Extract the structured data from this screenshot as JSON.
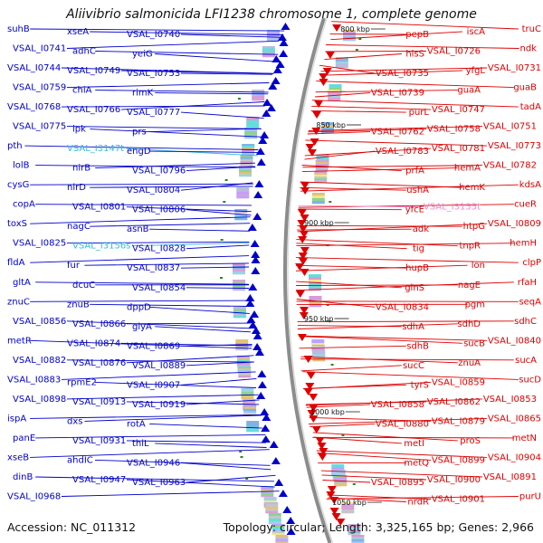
{
  "title": "Aliivibrio salmonicida LFI1238 chromosome 1, complete genome",
  "footer": {
    "accession": "Accession: NC_011312",
    "summary": "Topology: circular; Length: 3,325,165 bp; Genes: 2,966"
  },
  "colors": {
    "minus_strand": "#0000cc",
    "plus_strand": "#dd0000",
    "minus_rna": "#33bbdd",
    "plus_rna": "#ee88cc",
    "backbone": "#999999"
  },
  "ticks": [
    "800 kbp",
    "850 kbp",
    "900 kbp",
    "950 kbp",
    "1000 kbp",
    "1050 kbp"
  ],
  "left_labels": [
    {
      "text": "suhB",
      "rna": false
    },
    {
      "text": "xseA",
      "rna": false
    },
    {
      "text": "VSAL_I0740",
      "rna": false
    },
    {
      "text": "VSAL_I0741",
      "rna": false
    },
    {
      "text": "adhC",
      "rna": false
    },
    {
      "text": "yeiG",
      "rna": false
    },
    {
      "text": "VSAL_I0744",
      "rna": false
    },
    {
      "text": "VSAL_I0749",
      "rna": false
    },
    {
      "text": "VSAL_I0753",
      "rna": false
    },
    {
      "text": "VSAL_I0759",
      "rna": false
    },
    {
      "text": "chiA",
      "rna": false
    },
    {
      "text": "rimK",
      "rna": false
    },
    {
      "text": "VSAL_I0768",
      "rna": false
    },
    {
      "text": "VSAL_I0766",
      "rna": false
    },
    {
      "text": "VSAL_I0777",
      "rna": false
    },
    {
      "text": "VSAL_I0775",
      "rna": false
    },
    {
      "text": "ipk",
      "rna": false
    },
    {
      "text": "prs",
      "rna": false
    },
    {
      "text": "pth",
      "rna": false
    },
    {
      "text": "VSAL_I3147t",
      "rna": true
    },
    {
      "text": "engD",
      "rna": false
    },
    {
      "text": "lolB",
      "rna": false
    },
    {
      "text": "nirB",
      "rna": false
    },
    {
      "text": "VSAL_I0796",
      "rna": false
    },
    {
      "text": "cysG",
      "rna": false
    },
    {
      "text": "nirD",
      "rna": false
    },
    {
      "text": "VSAL_I0804",
      "rna": false
    },
    {
      "text": "copA",
      "rna": false
    },
    {
      "text": "VSAL_I0801",
      "rna": false
    },
    {
      "text": "VSAL_I0806",
      "rna": false
    },
    {
      "text": "toxS",
      "rna": false
    },
    {
      "text": "nagC",
      "rna": false
    },
    {
      "text": "asnB",
      "rna": false
    },
    {
      "text": "VSAL_I0825",
      "rna": false
    },
    {
      "text": "VSAL_I3156s",
      "rna": true
    },
    {
      "text": "VSAL_I0828",
      "rna": false
    },
    {
      "text": "fldA",
      "rna": false
    },
    {
      "text": "fur",
      "rna": false
    },
    {
      "text": "VSAL_I0837",
      "rna": false
    },
    {
      "text": "gltA",
      "rna": false
    },
    {
      "text": "dcuC",
      "rna": false
    },
    {
      "text": "VSAL_I0854",
      "rna": false
    },
    {
      "text": "znuC",
      "rna": false
    },
    {
      "text": "znuB",
      "rna": false
    },
    {
      "text": "dppD",
      "rna": false
    },
    {
      "text": "VSAL_I0856",
      "rna": false
    },
    {
      "text": "VSAL_I0866",
      "rna": false
    },
    {
      "text": "glyA",
      "rna": false
    },
    {
      "text": "metR",
      "rna": false
    },
    {
      "text": "VSAL_I0874",
      "rna": false
    },
    {
      "text": "VSAL_I0869",
      "rna": false
    },
    {
      "text": "VSAL_I0882",
      "rna": false
    },
    {
      "text": "VSAL_I0876",
      "rna": false
    },
    {
      "text": "VSAL_I0889",
      "rna": false
    },
    {
      "text": "VSAL_I0883",
      "rna": false
    },
    {
      "text": "rpmE2",
      "rna": false
    },
    {
      "text": "VSAL_I0907",
      "rna": false
    },
    {
      "text": "VSAL_I0898",
      "rna": false
    },
    {
      "text": "VSAL_I0913",
      "rna": false
    },
    {
      "text": "VSAL_I0919",
      "rna": false
    },
    {
      "text": "ispA",
      "rna": false
    },
    {
      "text": "dxs",
      "rna": false
    },
    {
      "text": "rotA",
      "rna": false
    },
    {
      "text": "panE",
      "rna": false
    },
    {
      "text": "VSAL_I0931",
      "rna": false
    },
    {
      "text": "thiL",
      "rna": false
    },
    {
      "text": "xseB",
      "rna": false
    },
    {
      "text": "ahdIC",
      "rna": false
    },
    {
      "text": "VSAL_I0946",
      "rna": false
    },
    {
      "text": "dinB",
      "rna": false
    },
    {
      "text": "VSAL_I0947",
      "rna": false
    },
    {
      "text": "VSAL_I0963",
      "rna": false
    },
    {
      "text": "VSAL_I0968",
      "rna": false
    }
  ],
  "right_labels": [
    {
      "text": "truC",
      "rna": false
    },
    {
      "text": "iscA",
      "rna": false
    },
    {
      "text": "pepB",
      "rna": false
    },
    {
      "text": "ndk",
      "rna": false
    },
    {
      "text": "VSAL_I0726",
      "rna": false
    },
    {
      "text": "hisS",
      "rna": false
    },
    {
      "text": "VSAL_I0731",
      "rna": false
    },
    {
      "text": "yfgL",
      "rna": false
    },
    {
      "text": "VSAL_I0735",
      "rna": false
    },
    {
      "text": "guaB",
      "rna": false
    },
    {
      "text": "guaA",
      "rna": false
    },
    {
      "text": "VSAL_I0739",
      "rna": false
    },
    {
      "text": "tadA",
      "rna": false
    },
    {
      "text": "VSAL_I0747",
      "rna": false
    },
    {
      "text": "purL",
      "rna": false
    },
    {
      "text": "VSAL_I0751",
      "rna": false
    },
    {
      "text": "VSAL_I0758",
      "rna": false
    },
    {
      "text": "VSAL_I0762",
      "rna": false
    },
    {
      "text": "VSAL_I0773",
      "rna": false
    },
    {
      "text": "VSAL_I0781",
      "rna": false
    },
    {
      "text": "VSAL_I0783",
      "rna": false
    },
    {
      "text": "VSAL_I0782",
      "rna": false
    },
    {
      "text": "hemA",
      "rna": false
    },
    {
      "text": "prfA",
      "rna": false
    },
    {
      "text": "kdsA",
      "rna": false
    },
    {
      "text": "hemK",
      "rna": false
    },
    {
      "text": "ushA",
      "rna": false
    },
    {
      "text": "cueR",
      "rna": false
    },
    {
      "text": "VSAL_I3155t",
      "rna": true
    },
    {
      "text": "yfcE",
      "rna": false
    },
    {
      "text": "VSAL_I0809",
      "rna": false
    },
    {
      "text": "htpG",
      "rna": false
    },
    {
      "text": "adk",
      "rna": false
    },
    {
      "text": "hemH",
      "rna": false
    },
    {
      "text": "tnpR",
      "rna": false
    },
    {
      "text": "tig",
      "rna": false
    },
    {
      "text": "clpP",
      "rna": false
    },
    {
      "text": "lon",
      "rna": false
    },
    {
      "text": "hupB",
      "rna": false
    },
    {
      "text": "rfaH",
      "rna": false
    },
    {
      "text": "nagE",
      "rna": false
    },
    {
      "text": "glnS",
      "rna": false
    },
    {
      "text": "seqA",
      "rna": false
    },
    {
      "text": "pgm",
      "rna": false
    },
    {
      "text": "VSAL_I0834",
      "rna": false
    },
    {
      "text": "sdhC",
      "rna": false
    },
    {
      "text": "sdhD",
      "rna": false
    },
    {
      "text": "sdhA",
      "rna": false
    },
    {
      "text": "VSAL_I0840",
      "rna": false
    },
    {
      "text": "sucB",
      "rna": false
    },
    {
      "text": "sdhB",
      "rna": false
    },
    {
      "text": "sucA",
      "rna": false
    },
    {
      "text": "znuA",
      "rna": false
    },
    {
      "text": "sucC",
      "rna": false
    },
    {
      "text": "sucD",
      "rna": false
    },
    {
      "text": "VSAL_I0859",
      "rna": false
    },
    {
      "text": "tyrS",
      "rna": false
    },
    {
      "text": "VSAL_I0853",
      "rna": false
    },
    {
      "text": "VSAL_I0862",
      "rna": false
    },
    {
      "text": "VSAL_I0858",
      "rna": false
    },
    {
      "text": "VSAL_I0865",
      "rna": false
    },
    {
      "text": "VSAL_I0879",
      "rna": false
    },
    {
      "text": "VSAL_I0880",
      "rna": false
    },
    {
      "text": "metN",
      "rna": false
    },
    {
      "text": "proS",
      "rna": false
    },
    {
      "text": "metI",
      "rna": false
    },
    {
      "text": "VSAL_I0904",
      "rna": false
    },
    {
      "text": "VSAL_I0899",
      "rna": false
    },
    {
      "text": "metQ",
      "rna": false
    },
    {
      "text": "VSAL_I0891",
      "rna": false
    },
    {
      "text": "VSAL_I0900",
      "rna": false
    },
    {
      "text": "VSAL_I0895",
      "rna": false
    },
    {
      "text": "purU",
      "rna": false
    },
    {
      "text": "VSAL_I0901",
      "rna": false
    },
    {
      "text": "nrdR",
      "rna": false
    }
  ]
}
